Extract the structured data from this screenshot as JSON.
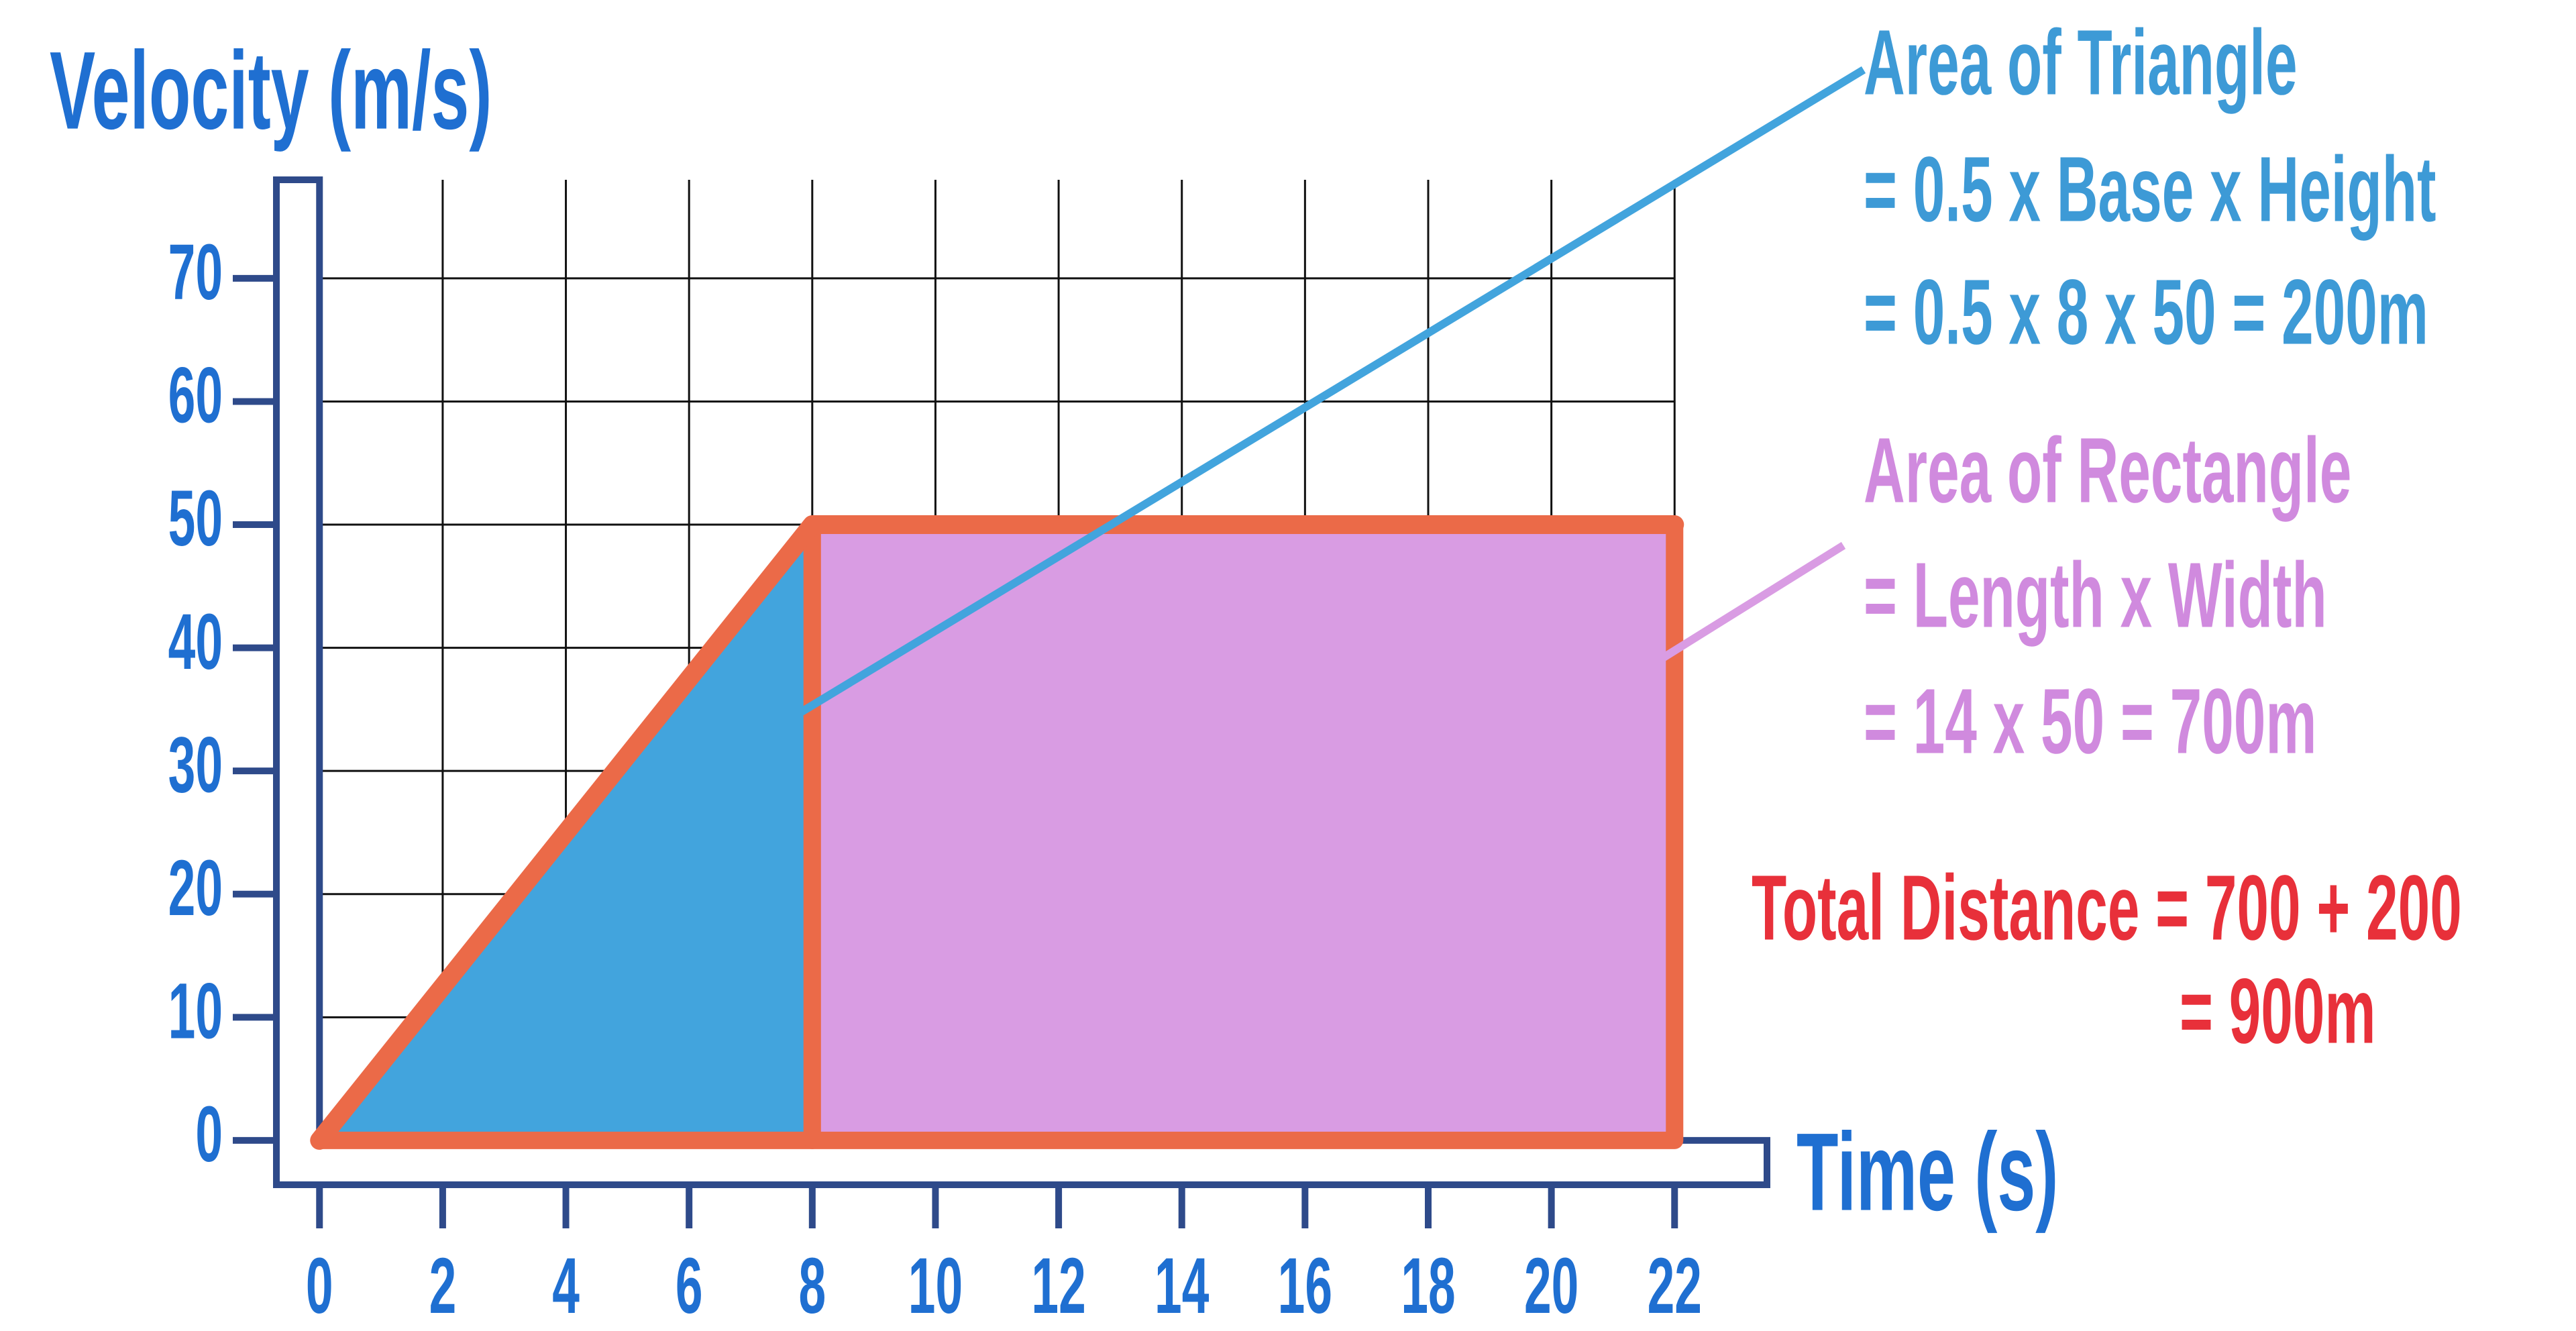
{
  "chart_data": {
    "type": "area",
    "y_label": "Velocity (m/s)",
    "x_label": "Time (s)",
    "x": [
      0,
      8,
      22
    ],
    "values": [
      0,
      50,
      50
    ],
    "line_color": "#eb6a48",
    "fills": [
      "#42a4dd",
      "#d99ce3"
    ],
    "xlim": [
      -0.7,
      23.5
    ],
    "ylim": [
      -3.6,
      78
    ],
    "xticks": [
      0,
      2,
      4,
      6,
      8,
      10,
      12,
      14,
      16,
      18,
      20,
      22
    ],
    "yticks": [
      0,
      10,
      20,
      30,
      40,
      50,
      60,
      70
    ],
    "grid": true,
    "axis_color": "#2e4a8a",
    "label_color": "#1f6fd1",
    "annotations": [
      {
        "lines": [
          "Area of Triangle",
          "= 0.5 x Base x Height",
          "= 0.5 x 8 x 50 = 200m"
        ],
        "color": "#3d9ad6"
      },
      {
        "lines": [
          "Area of Rectangle",
          "= Length x Width",
          "= 14 x 50 = 700m"
        ],
        "color": "#d08ade"
      },
      {
        "lines": [
          "Total Distance = 700 + 200",
          "= 900m"
        ],
        "color": "#e8303a"
      }
    ]
  }
}
